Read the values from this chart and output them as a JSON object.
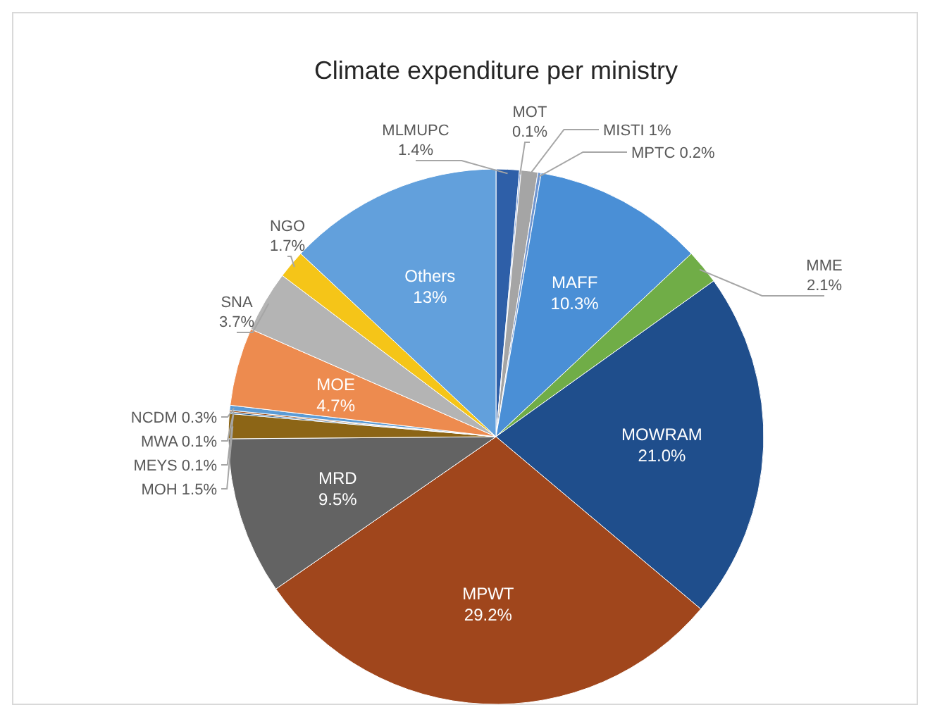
{
  "chart_data": {
    "type": "pie",
    "title": "Climate expenditure per ministry",
    "categories": [
      "MLMUPC",
      "MOT",
      "MISTI",
      "MPTC",
      "MAFF",
      "MME",
      "MOWRAM",
      "MPWT",
      "MRD",
      "MOH",
      "MEYS",
      "MWA",
      "NCDM",
      "MOE",
      "SNA",
      "NGO",
      "Others"
    ],
    "values": [
      1.4,
      0.1,
      1,
      0.2,
      10.3,
      2.1,
      21.0,
      29.2,
      9.5,
      1.5,
      0.1,
      0.1,
      0.3,
      4.7,
      3.7,
      1.7,
      13
    ],
    "value_labels": [
      "1.4%",
      "0.1%",
      "1%",
      "0.2%",
      "10.3%",
      "2.1%",
      "21.0%",
      "29.2%",
      "9.5%",
      "1.5%",
      "0.1%",
      "0.1%",
      "0.3%",
      "4.7%",
      "3.7%",
      "1.7%",
      "13%"
    ],
    "colors": [
      "#2e5fa8",
      "#8faadc",
      "#a5a5a5",
      "#6f95cf",
      "#4a8fd6",
      "#70ad47",
      "#1f4e8c",
      "#a0461c",
      "#636363",
      "#8c6516",
      "#255e91",
      "#9e480e",
      "#5b9bd5",
      "#ed8b4f",
      "#b4b4b4",
      "#f5c518",
      "#62a0dc"
    ]
  }
}
